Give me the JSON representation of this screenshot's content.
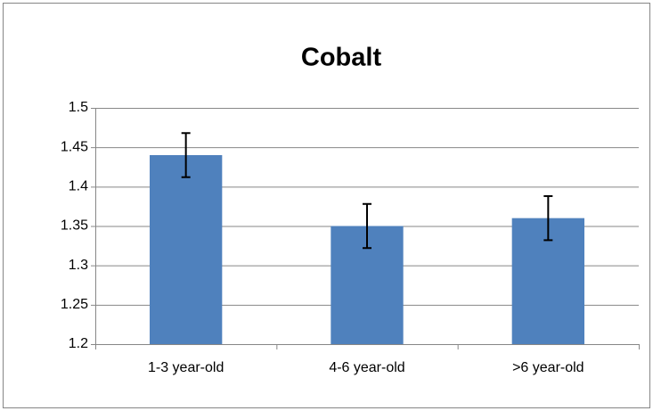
{
  "chart_data": {
    "type": "bar",
    "title": "Cobalt",
    "categories": [
      "1-3 year-old",
      "4-6 year-old",
      ">6 year-old"
    ],
    "values": [
      1.44,
      1.35,
      1.36
    ],
    "errors": [
      0.028,
      0.028,
      0.028
    ],
    "color": "#4f81bd",
    "ylim": [
      1.2,
      1.5
    ],
    "yticks": [
      1.2,
      1.25,
      1.3,
      1.35,
      1.4,
      1.45,
      1.5
    ],
    "grid": true
  }
}
